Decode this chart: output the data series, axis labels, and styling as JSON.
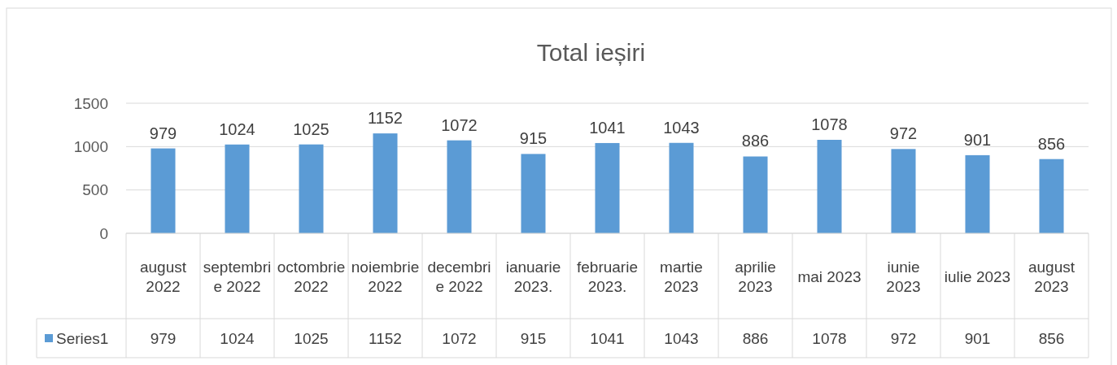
{
  "chart_data": {
    "type": "bar",
    "title": "Total ieșiri",
    "categories": [
      "august 2022",
      "septembrie 2022",
      "octombrie 2022",
      "noiembrie 2022",
      "decembrie 2022",
      "ianuarie 2023.",
      "februarie 2023.",
      "martie 2023",
      "aprilie 2023",
      "mai 2023",
      "iunie 2023",
      "iulie 2023",
      "august 2023"
    ],
    "series": [
      {
        "name": "Series1",
        "color": "#5b9bd5",
        "values": [
          979,
          1024,
          1025,
          1152,
          1072,
          915,
          1041,
          1043,
          886,
          1078,
          972,
          901,
          856
        ]
      }
    ],
    "annotations": [
      {
        "text": "979",
        "x": "august 2022",
        "y": 979
      },
      {
        "text": "1024",
        "x": "septembrie 2022",
        "y": 1024
      },
      {
        "text": "1025",
        "x": "octombrie 2022",
        "y": 1025
      },
      {
        "text": "1152",
        "x": "noiembrie 2022",
        "y": 1152
      },
      {
        "text": "1072",
        "x": "decembrie 2022",
        "y": 1072
      },
      {
        "text": "915",
        "x": "ianuarie 2023.",
        "y": 915
      },
      {
        "text": "1041",
        "x": "februarie 2023.",
        "y": 1041
      },
      {
        "text": "1043",
        "x": "martie 2023",
        "y": 1043
      },
      {
        "text": "886",
        "x": "aprilie 2023",
        "y": 886
      },
      {
        "text": "1078",
        "x": "mai 2023",
        "y": 1078
      },
      {
        "text": "972",
        "x": "iunie 2023",
        "y": 972
      },
      {
        "text": "901",
        "x": "iulie 2023",
        "y": 901
      },
      {
        "text": "856",
        "x": "august 2023",
        "y": 856
      }
    ],
    "ylim": [
      0,
      1500
    ],
    "yticks": [
      0,
      500,
      1000,
      1500
    ],
    "grid": "y",
    "data_labels": true,
    "legend": "bottom"
  }
}
